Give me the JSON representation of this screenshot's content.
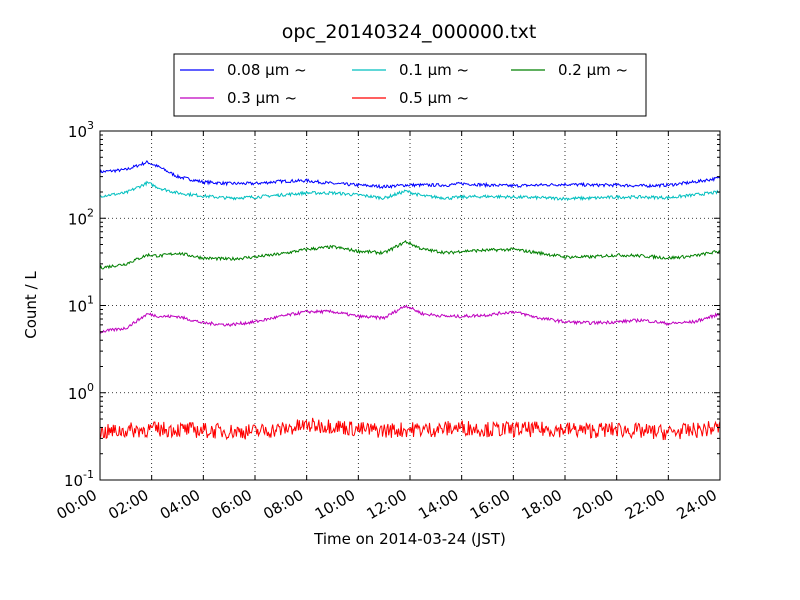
{
  "chart_data": {
    "type": "line",
    "title": "opc_20140324_000000.txt",
    "xlabel": "Time on 2014-03-24 (JST)",
    "ylabel": "Count / L",
    "yscale": "log",
    "ylim": [
      0.1,
      1000
    ],
    "y_ticks": [
      {
        "value": 0.1,
        "base": "10",
        "exp": "-1"
      },
      {
        "value": 1,
        "base": "10",
        "exp": "0"
      },
      {
        "value": 10,
        "base": "10",
        "exp": "1"
      },
      {
        "value": 100,
        "base": "10",
        "exp": "2"
      },
      {
        "value": 1000,
        "base": "10",
        "exp": "3"
      }
    ],
    "xlim": [
      "00:00",
      "24:00"
    ],
    "x_ticks": [
      "00:00",
      "02:00",
      "04:00",
      "06:00",
      "08:00",
      "10:00",
      "12:00",
      "14:00",
      "16:00",
      "18:00",
      "20:00",
      "22:00",
      "24:00"
    ],
    "grid": true,
    "legend_position": "top-center",
    "series": [
      {
        "name": "0.08 μm ~",
        "color": "#0000ff",
        "x": [
          "00:00",
          "01:00",
          "01:50",
          "02:20",
          "03:00",
          "04:00",
          "05:00",
          "06:00",
          "07:00",
          "08:00",
          "09:00",
          "10:00",
          "11:00",
          "11:50",
          "12:30",
          "13:30",
          "14:00",
          "15:00",
          "16:00",
          "17:00",
          "18:00",
          "19:00",
          "20:00",
          "21:00",
          "22:00",
          "23:00",
          "24:00"
        ],
        "values": [
          340,
          360,
          440,
          380,
          300,
          260,
          250,
          250,
          265,
          270,
          250,
          240,
          230,
          240,
          240,
          240,
          250,
          240,
          235,
          240,
          245,
          240,
          240,
          235,
          240,
          260,
          290
        ]
      },
      {
        "name": "0.1 μm ~",
        "color": "#00bfbf",
        "x": [
          "00:00",
          "01:00",
          "01:50",
          "02:20",
          "03:00",
          "04:00",
          "05:00",
          "06:00",
          "07:00",
          "08:00",
          "09:00",
          "10:00",
          "11:00",
          "11:50",
          "12:30",
          "13:30",
          "14:00",
          "15:00",
          "16:00",
          "17:00",
          "18:00",
          "19:00",
          "20:00",
          "21:00",
          "22:00",
          "23:00",
          "24:00"
        ],
        "values": [
          180,
          195,
          255,
          220,
          195,
          180,
          170,
          175,
          185,
          195,
          195,
          185,
          170,
          205,
          180,
          170,
          175,
          178,
          175,
          172,
          168,
          170,
          175,
          175,
          172,
          185,
          200
        ]
      },
      {
        "name": "0.2 μm ~",
        "color": "#008000",
        "x": [
          "00:00",
          "01:00",
          "01:50",
          "02:20",
          "03:00",
          "04:00",
          "05:00",
          "06:00",
          "07:00",
          "08:00",
          "09:00",
          "10:00",
          "11:00",
          "11:50",
          "12:30",
          "13:30",
          "14:00",
          "15:00",
          "16:00",
          "17:00",
          "18:00",
          "19:00",
          "20:00",
          "21:00",
          "22:00",
          "23:00",
          "24:00"
        ],
        "values": [
          27,
          30,
          38,
          37,
          40,
          35,
          34,
          36,
          39,
          44,
          47,
          42,
          40,
          54,
          44,
          40,
          42,
          43,
          44,
          40,
          36,
          36,
          38,
          37,
          35,
          37,
          42
        ]
      },
      {
        "name": "0.3 μm ~",
        "color": "#bf00bf",
        "x": [
          "00:00",
          "01:00",
          "01:50",
          "02:20",
          "03:00",
          "04:00",
          "05:00",
          "06:00",
          "07:00",
          "08:00",
          "09:00",
          "10:00",
          "11:00",
          "11:50",
          "12:30",
          "13:30",
          "14:00",
          "15:00",
          "16:00",
          "17:00",
          "18:00",
          "19:00",
          "20:00",
          "21:00",
          "22:00",
          "23:00",
          "24:00"
        ],
        "values": [
          5,
          5.5,
          8,
          7.5,
          7.5,
          6.3,
          6,
          6.5,
          7.5,
          8.5,
          8.5,
          7.5,
          7.2,
          10,
          8,
          7.5,
          7.5,
          7.8,
          8.5,
          7.2,
          6.5,
          6.3,
          6.5,
          6.8,
          6.2,
          6.5,
          8
        ]
      },
      {
        "name": "0.5 μm ~",
        "color": "#ff0000",
        "x": [
          "00:00",
          "01:00",
          "02:00",
          "03:00",
          "04:00",
          "05:00",
          "06:00",
          "07:00",
          "08:00",
          "09:00",
          "10:00",
          "11:00",
          "12:00",
          "13:00",
          "14:00",
          "15:00",
          "16:00",
          "17:00",
          "18:00",
          "19:00",
          "20:00",
          "21:00",
          "22:00",
          "23:00",
          "24:00"
        ],
        "values": [
          0.35,
          0.37,
          0.38,
          0.38,
          0.37,
          0.36,
          0.36,
          0.38,
          0.42,
          0.42,
          0.38,
          0.37,
          0.38,
          0.38,
          0.4,
          0.38,
          0.38,
          0.38,
          0.38,
          0.37,
          0.38,
          0.36,
          0.35,
          0.37,
          0.4
        ],
        "noise": "high"
      }
    ]
  }
}
